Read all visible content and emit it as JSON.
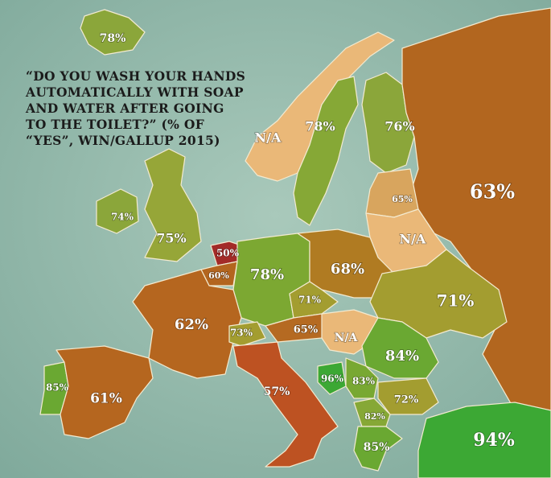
{
  "title": {
    "lines": [
      "“DO YOU WASH YOUR HANDS",
      "AUTOMATICALLY WITH SOAP",
      "AND WATER AFTER GOING",
      "TO THE TOILET?” (% OF",
      "“YES”, WIN/GALLUP 2015)"
    ]
  },
  "regions": [
    {
      "label": "78%",
      "color": "#8ba63a"
    },
    {
      "label": "N/A",
      "color": "#eab878"
    },
    {
      "label": "78%",
      "color": "#86a836"
    },
    {
      "label": "76%",
      "color": "#8ba63a"
    },
    {
      "label": "63%",
      "color": "#b2661f"
    },
    {
      "label": "65%",
      "color": "#d8a55e"
    },
    {
      "label": "N/A",
      "color": "#eab878"
    },
    {
      "label": "74%",
      "color": "#8ba63a"
    },
    {
      "label": "75%",
      "color": "#96a638"
    },
    {
      "label": "50%",
      "color": "#a32b28"
    },
    {
      "label": "60%",
      "color": "#b3651f"
    },
    {
      "label": "78%",
      "color": "#7ca832"
    },
    {
      "label": "68%",
      "color": "#b07b22"
    },
    {
      "label": "71%",
      "color": "#a39d30"
    },
    {
      "label": "71%",
      "color": "#a39d30"
    },
    {
      "label": "62%",
      "color": "#b5661f"
    },
    {
      "label": "73%",
      "color": "#a39d30"
    },
    {
      "label": "65%",
      "color": "#b56a22"
    },
    {
      "label": "N/A",
      "color": "#eab878"
    },
    {
      "label": "84%",
      "color": "#6aa832"
    },
    {
      "label": "96%",
      "color": "#3ca834"
    },
    {
      "label": "83%",
      "color": "#78a832"
    },
    {
      "label": "72%",
      "color": "#a39d30"
    },
    {
      "label": "85%",
      "color": "#6aa832"
    },
    {
      "label": "61%",
      "color": "#b5661f"
    },
    {
      "label": "57%",
      "color": "#bd5222"
    },
    {
      "label": "82%",
      "color": "#86a836"
    },
    {
      "label": "85%",
      "color": "#6aa832"
    },
    {
      "label": "94%",
      "color": "#3ca834"
    }
  ]
}
